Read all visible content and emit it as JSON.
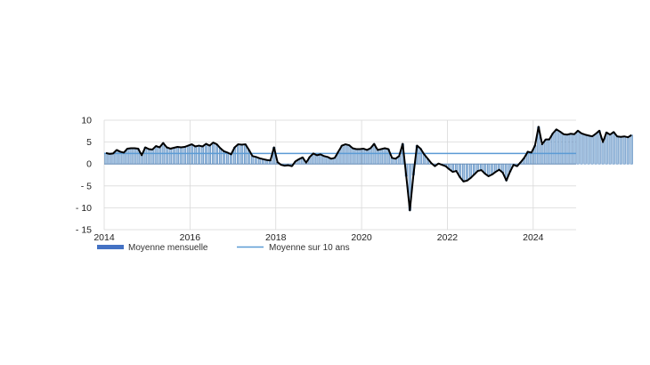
{
  "chart_data": {
    "type": "bar",
    "title": "",
    "xlabel": "",
    "ylabel": "",
    "ylim": [
      -15,
      10
    ],
    "y_ticks": [
      10,
      5,
      0,
      -5,
      -10,
      -15
    ],
    "y_tick_labels": [
      "10",
      "5",
      "0",
      "- 5",
      "- 10",
      "- 15"
    ],
    "x_range": [
      2014.0,
      2025.0
    ],
    "x_ticks": [
      2014,
      2016,
      2018,
      2020,
      2022,
      2024
    ],
    "x_tick_labels": [
      "2014",
      "2016",
      "2018",
      "2020",
      "2022",
      "2024"
    ],
    "grid": {
      "vertical_at_ticks": true,
      "horizontal": true
    },
    "legend": {
      "placement": "bottom-left"
    },
    "colors": {
      "bar_fill": "#a9c6e3",
      "bar_edge": "#4a7fb8",
      "line": "#000000",
      "average_line": "#5b9bd5",
      "legend_bar": "#4472c4",
      "grid": "#d9d9d9"
    },
    "series": [
      {
        "name": "Moyenne mensuelle",
        "kind": "bar+line",
        "start": "2014-01",
        "frequency": "monthly",
        "values": [
          2.5,
          2.3,
          2.4,
          3.2,
          2.8,
          2.6,
          3.5,
          3.6,
          3.6,
          3.5,
          2.0,
          3.8,
          3.4,
          3.3,
          4.1,
          3.8,
          4.8,
          3.8,
          3.5,
          3.7,
          3.9,
          3.8,
          3.9,
          4.2,
          4.5,
          4.0,
          4.2,
          4.0,
          4.6,
          4.2,
          4.9,
          4.5,
          3.6,
          2.9,
          2.6,
          2.2,
          3.8,
          4.5,
          4.4,
          4.5,
          3.2,
          1.8,
          1.6,
          1.3,
          1.1,
          0.9,
          0.8,
          3.8,
          0.4,
          -0.2,
          -0.4,
          -0.3,
          -0.5,
          0.6,
          1.1,
          1.5,
          0.3,
          1.6,
          2.4,
          2.0,
          2.2,
          1.8,
          1.6,
          1.2,
          1.4,
          2.8,
          4.2,
          4.5,
          4.3,
          3.6,
          3.4,
          3.4,
          3.5,
          3.2,
          3.6,
          4.6,
          3.2,
          3.4,
          3.6,
          3.4,
          1.4,
          1.2,
          1.8,
          4.6,
          -2.8,
          -10.6,
          -2.5,
          4.2,
          3.5,
          2.2,
          1.2,
          0.2,
          -0.5,
          0.1,
          -0.2,
          -0.5,
          -1.2,
          -1.8,
          -1.6,
          -3.0,
          -4.0,
          -3.8,
          -3.2,
          -2.4,
          -1.6,
          -1.4,
          -2.2,
          -2.8,
          -2.4,
          -1.8,
          -1.3,
          -2.0,
          -3.8,
          -1.8,
          -0.2,
          -0.5,
          0.4,
          1.4,
          2.8,
          2.6,
          4.2,
          8.5,
          4.5,
          5.6,
          5.6,
          7.0,
          7.9,
          7.4,
          6.8,
          6.7,
          6.9,
          6.8,
          7.6,
          7.0,
          6.7,
          6.5,
          6.3,
          6.9,
          7.6,
          5.0,
          7.2,
          6.7,
          7.3,
          6.3,
          6.2,
          6.3,
          6.1,
          6.6
        ]
      },
      {
        "name": "Moyenne sur 10 ans",
        "kind": "horizontal-line",
        "value": 2.4
      }
    ]
  }
}
